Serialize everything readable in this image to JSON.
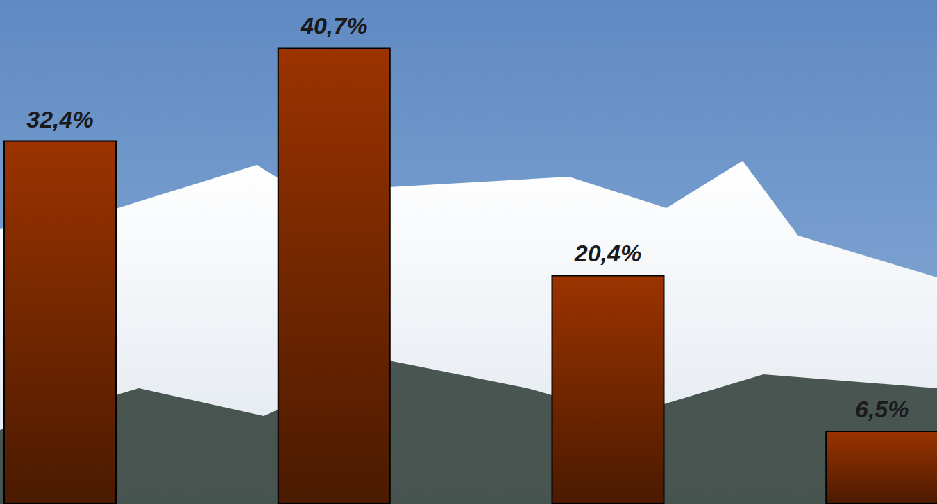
{
  "chart_data": {
    "type": "bar",
    "categories": [
      null,
      null,
      null,
      null
    ],
    "values": [
      32.4,
      40.7,
      20.4,
      6.5
    ],
    "value_labels": [
      "32,4%",
      "40,7%",
      "20,4%",
      "6,5%"
    ],
    "color": "#9b3300",
    "ylim": [
      0,
      45
    ],
    "data_labels": true,
    "tick_labels": false,
    "grid": false
  }
}
